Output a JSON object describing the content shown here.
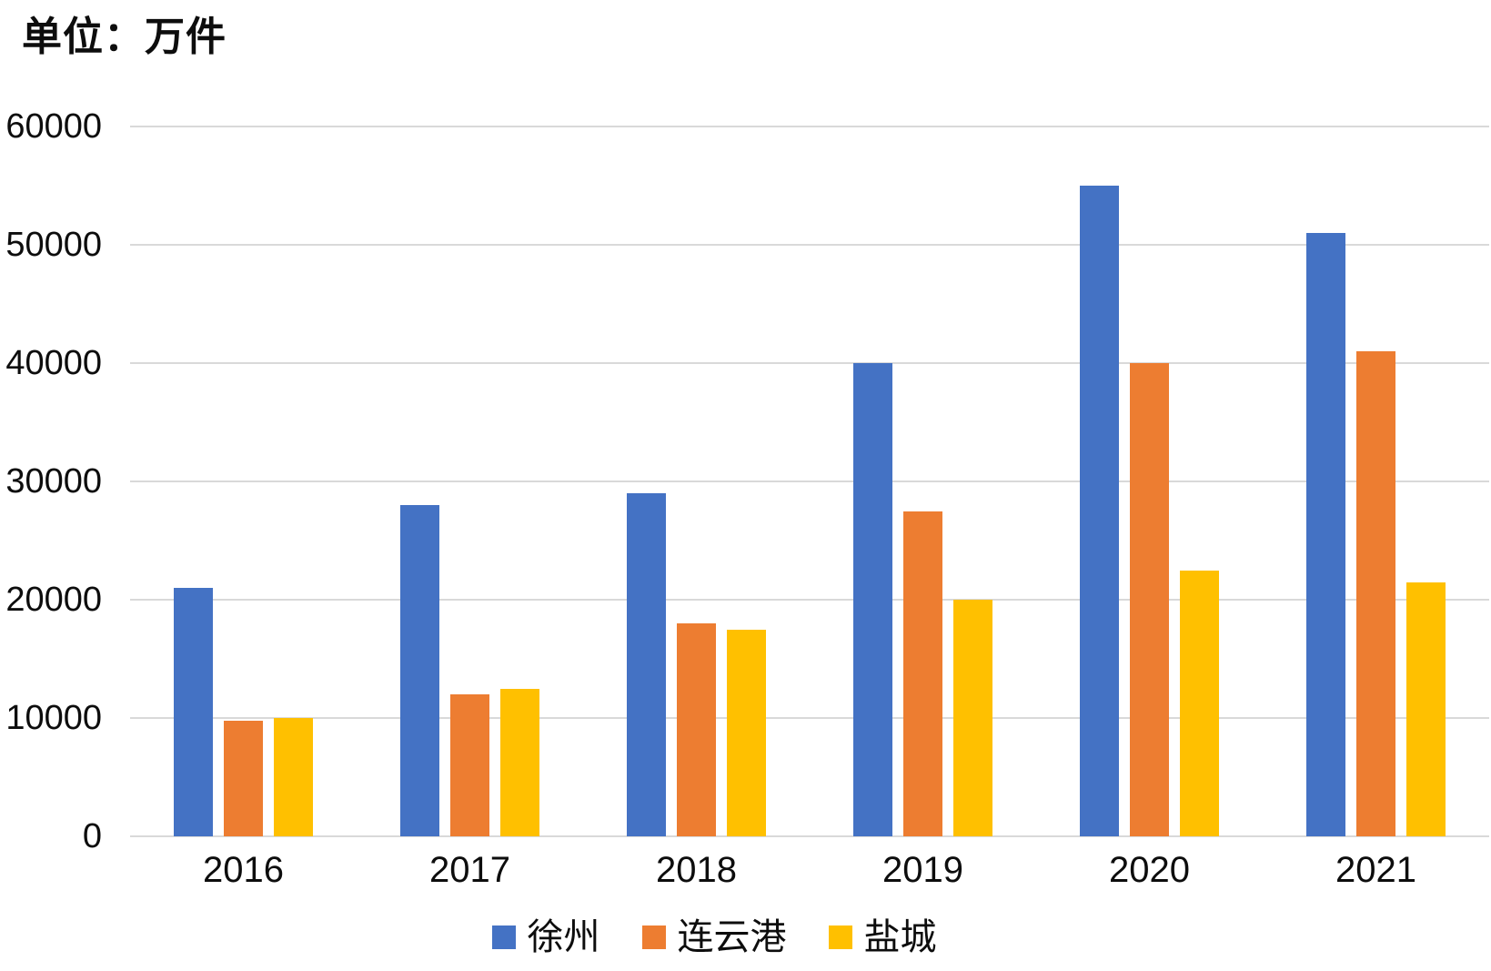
{
  "unit_label": "单位：万件",
  "colors": {
    "xuzhou_blue": "#4472C4",
    "lianyungang_orange": "#ED7D31",
    "yancheng_yellow": "#FFC000",
    "gridline_gray": "#D9D9D9",
    "text_black": "#0D0D0D"
  },
  "chart_data": {
    "type": "bar",
    "title": "单位：万件",
    "xlabel": "",
    "ylabel": "",
    "categories": [
      "2016",
      "2017",
      "2018",
      "2019",
      "2020",
      "2021"
    ],
    "series": [
      {
        "name": "徐州",
        "color": "#4472C4",
        "values": [
          21000,
          28000,
          29000,
          40000,
          55000,
          51000
        ]
      },
      {
        "name": "连云港",
        "color": "#ED7D31",
        "values": [
          9800,
          12000,
          18000,
          27500,
          40000,
          41000
        ]
      },
      {
        "name": "盐城",
        "color": "#FFC000",
        "values": [
          10000,
          12500,
          17500,
          20000,
          22500,
          21500
        ]
      }
    ],
    "ylim": [
      0,
      60000
    ],
    "yticks": [
      0,
      10000,
      20000,
      30000,
      40000,
      50000,
      60000
    ],
    "grid": "horizontal",
    "legend_position": "bottom"
  }
}
